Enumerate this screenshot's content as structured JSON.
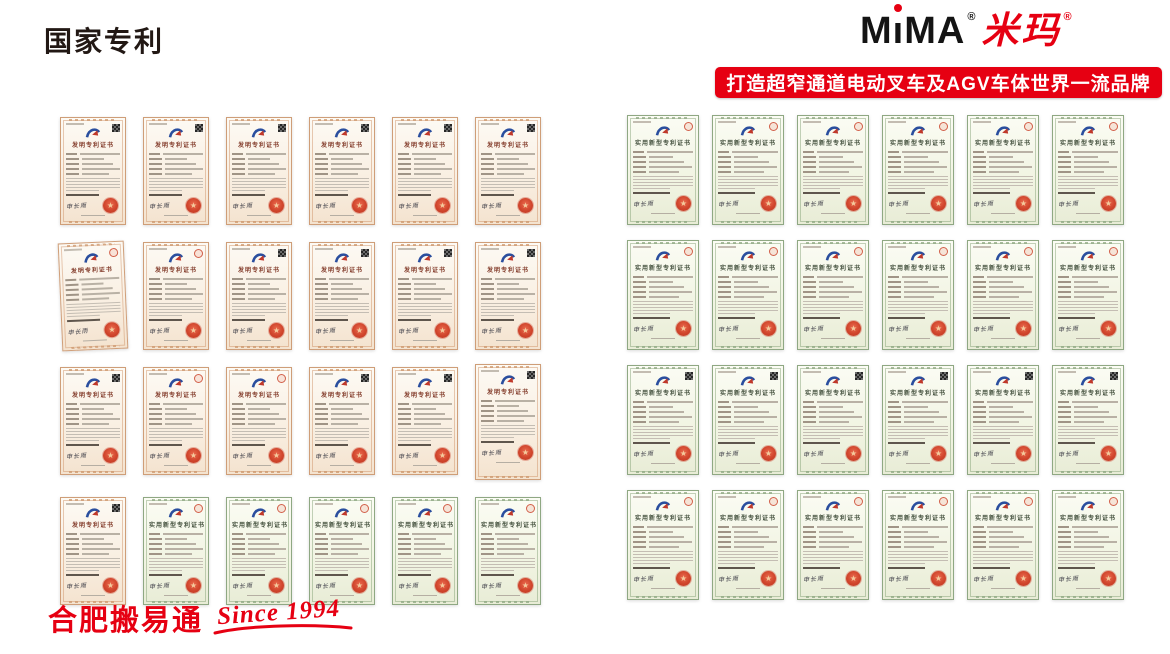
{
  "header": {
    "page_title": "国家专利",
    "brand": {
      "latin_prefix": "M",
      "latin_i": "ı",
      "latin_suffix": "MA",
      "reg": "®",
      "cn": "米玛",
      "reg2": "®"
    },
    "slogan": "打造超窄通道电动叉车及AGV车体世界一流品牌"
  },
  "footer": {
    "company": "合肥搬易通",
    "since": "Since 1994"
  },
  "colors": {
    "brand_red": "#e60012",
    "invention_border": "#cf9e78",
    "utility_border": "#8fa883",
    "seal_red": "#d0452c"
  },
  "certificates": {
    "invention_title": "发明专利证书",
    "utility_title": "实用新型专利证书",
    "signature": "申长雨",
    "left_grid": [
      [
        "inv:qr:cream",
        "inv:qr:cream",
        "inv:qr:cream",
        "inv:qr:cream",
        "inv:qr:cream",
        "inv:qr:white"
      ],
      [
        "inv:stamp:white:tilt",
        "inv:stamp:cream",
        "inv:qr:cream",
        "inv:qr:cream",
        "inv:qr:cream",
        "inv:qr:peach"
      ],
      [
        "inv:qr:cream",
        "inv:stamp:cream",
        "inv:stamp:white",
        "inv:qr:pink",
        "inv:qr:pink",
        "inv:qr:peach:tall"
      ],
      [
        "inv:qr:pink",
        "uti:stamp:green",
        "uti:stamp:white",
        "uti:stamp:white",
        "uti:stamp:white",
        "uti:stamp:white"
      ]
    ],
    "right_grid": [
      [
        "uti:stamp:cream",
        "uti:stamp:cream",
        "uti:stamp:cream",
        "uti:stamp:white",
        "uti:stamp:white",
        "uti:stamp:green"
      ],
      [
        "uti:stamp:cream",
        "uti:stamp:cream",
        "uti:stamp:white",
        "uti:stamp:cream",
        "uti:stamp:white",
        "uti:stamp:cream"
      ],
      [
        "uti:qr:mint",
        "uti:qr:mint",
        "uti:qr:mint",
        "uti:qr:mint",
        "uti:qr:mint",
        "uti:qr:mint"
      ],
      [
        "uti:stamp:white",
        "uti:stamp:cream",
        "uti:stamp:cream",
        "uti:stamp:cream",
        "uti:stamp:cream",
        "uti:stamp:green"
      ]
    ]
  }
}
